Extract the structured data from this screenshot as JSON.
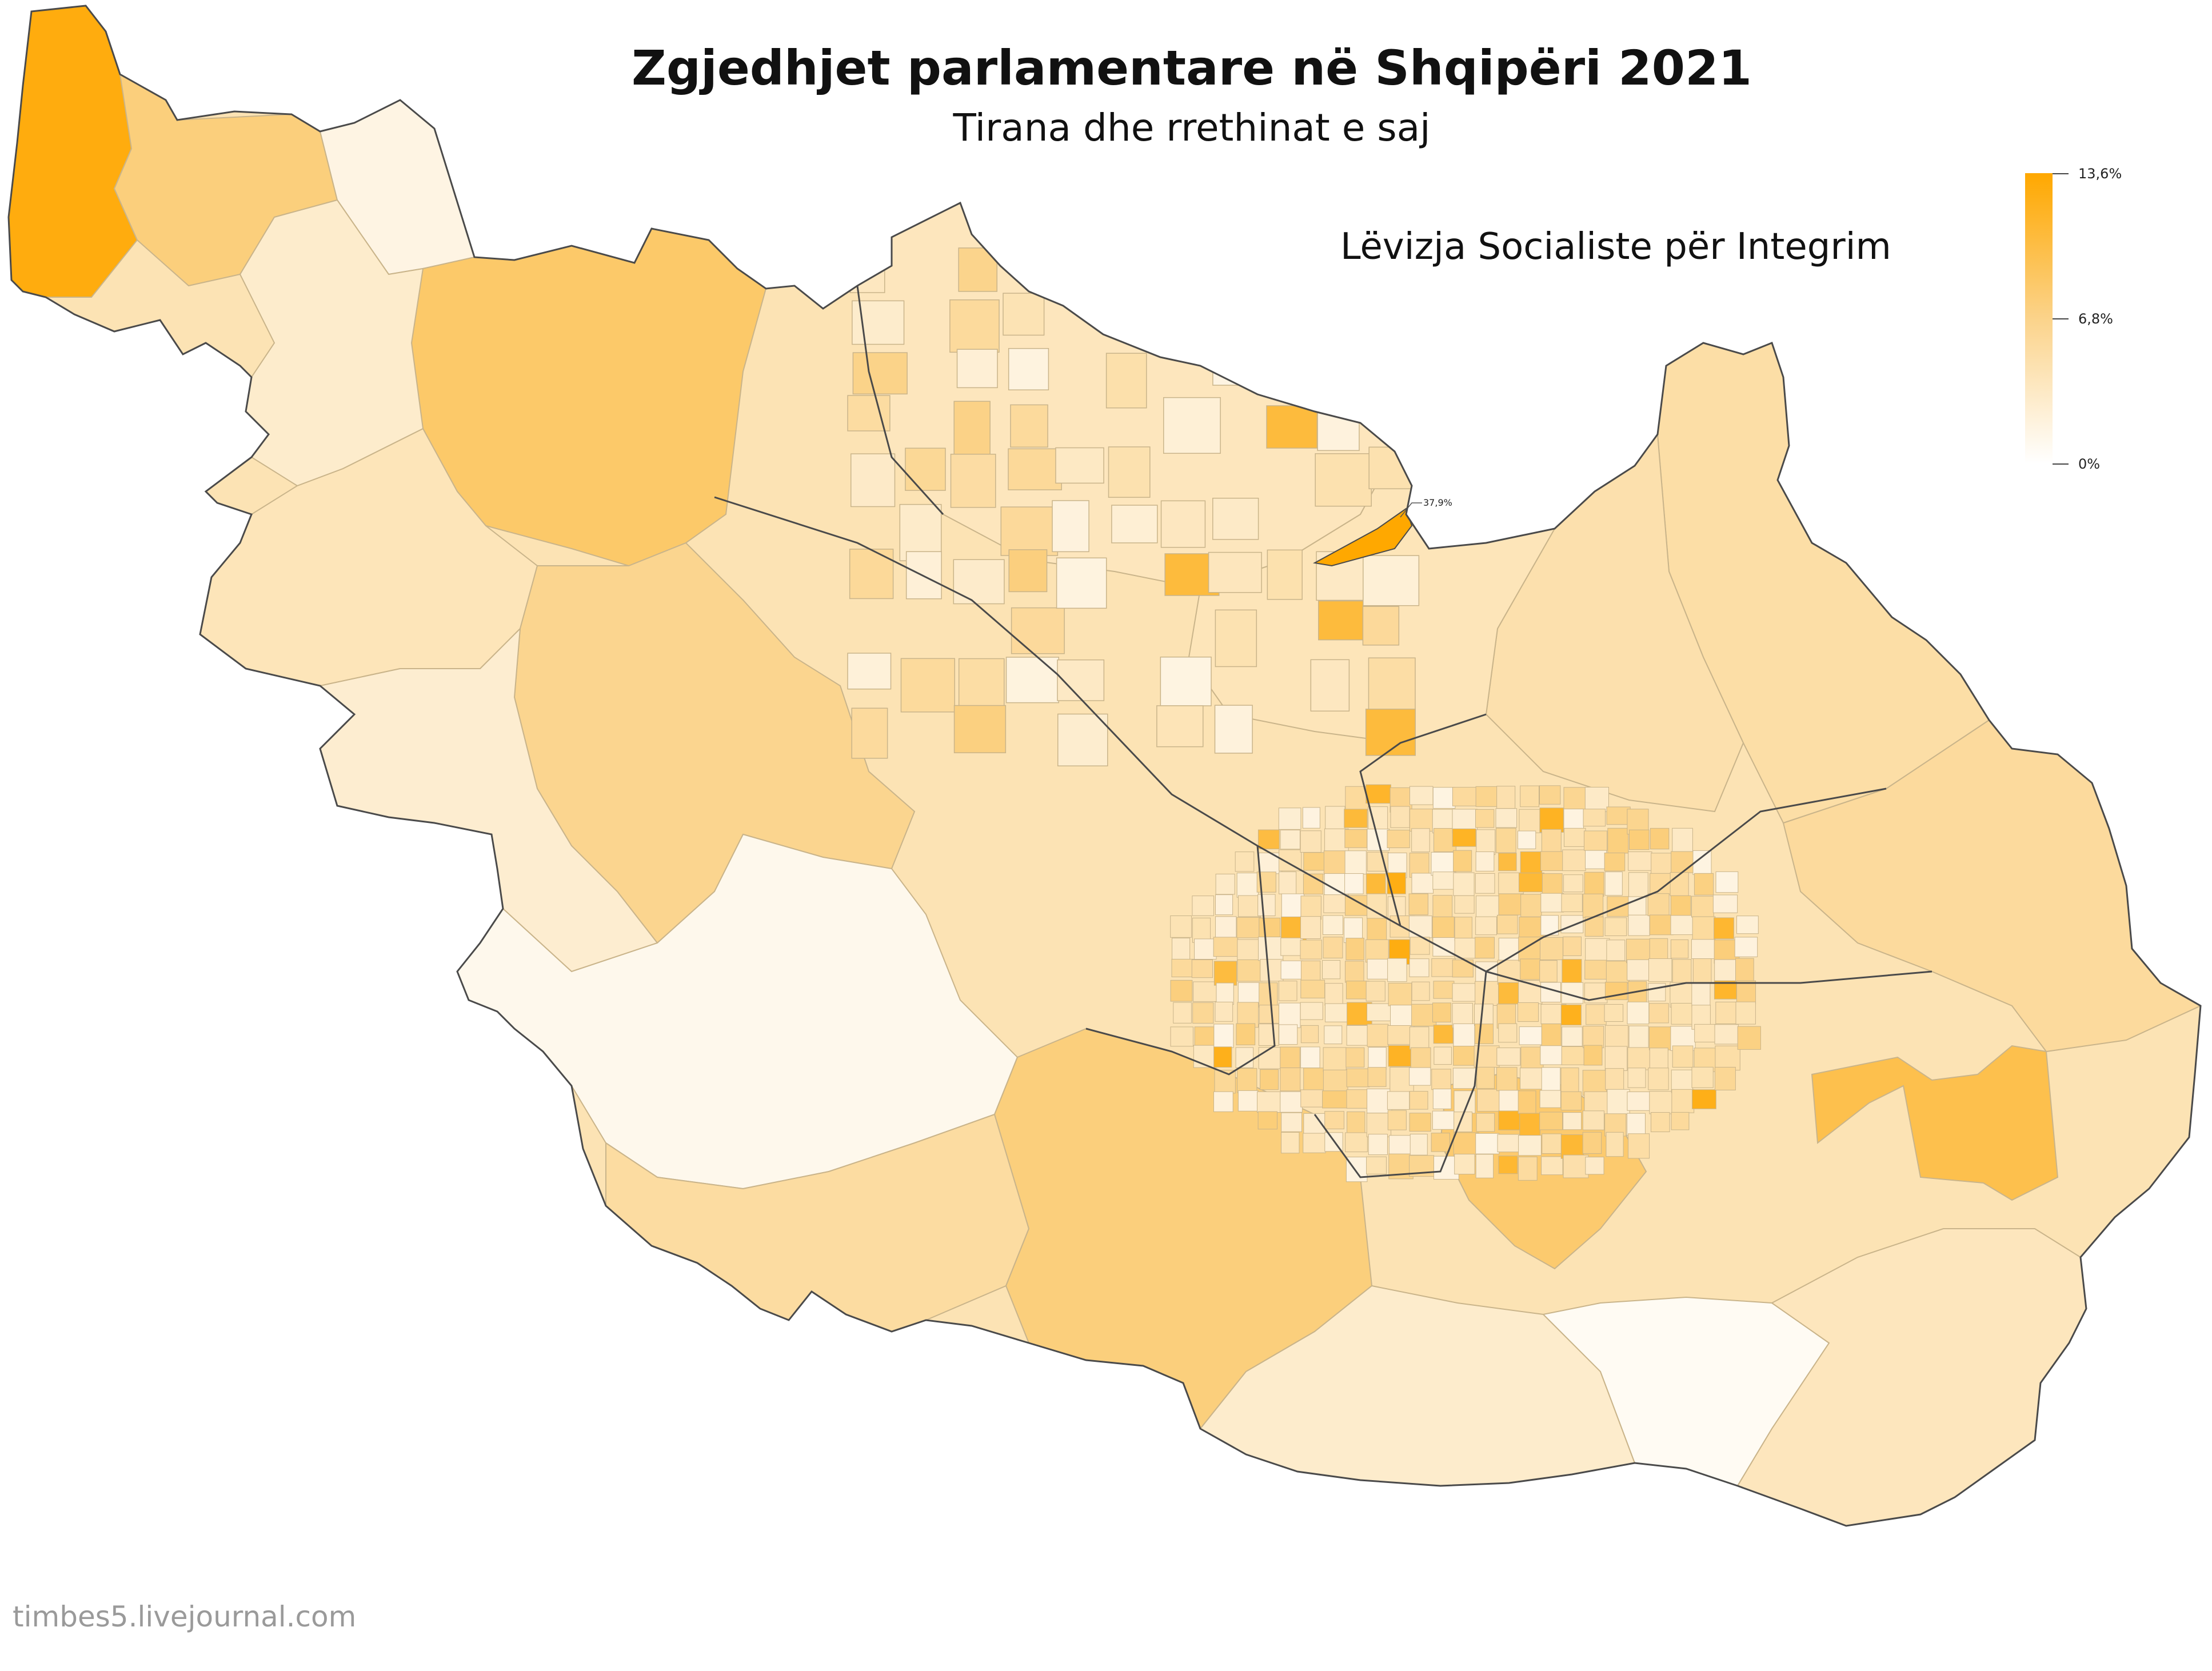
{
  "title": "Zgjedhjet parlamentare në Shqipëri 2021",
  "subtitle": "Tirana dhe rrethinat e saj",
  "party": "Lëvizja Socialiste për Integrim",
  "credit": "timbes5.livejournal.com",
  "legend": {
    "max_label": "13,6%",
    "mid_label": "6,8%",
    "min_label": "0%",
    "max_value": 13.6,
    "color_high": "#ffa800",
    "color_mid": "#fbd38a",
    "color_low": "#ffffff"
  },
  "callout": {
    "label": "37,9%",
    "value": 37.9
  },
  "colors": {
    "border": "#4a4a4a",
    "inner_border": "#c9b48a"
  }
}
